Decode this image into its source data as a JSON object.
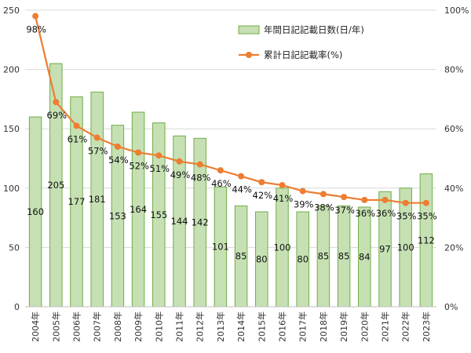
{
  "chart_data": {
    "type": "bar",
    "categories": [
      "2004年",
      "2005年",
      "2006年",
      "2007年",
      "2008年",
      "2009年",
      "2010年",
      "2011年",
      "2012年",
      "2013年",
      "2014年",
      "2015年",
      "2016年",
      "2017年",
      "2018年",
      "2019年",
      "2020年",
      "2021年",
      "2022年",
      "2023年"
    ],
    "series": [
      {
        "name": "年間日記記載日数(日/年)",
        "type": "bar",
        "axis": "left",
        "color": "#c6e0b4",
        "values": [
          160,
          205,
          177,
          181,
          153,
          164,
          155,
          144,
          142,
          101,
          85,
          80,
          100,
          80,
          85,
          85,
          84,
          97,
          100,
          112
        ]
      },
      {
        "name": "累計日記記載率(%)",
        "type": "line",
        "axis": "right",
        "color": "#ed7d31",
        "values": [
          98,
          69,
          61,
          57,
          54,
          52,
          51,
          49,
          48,
          46,
          44,
          42,
          41,
          39,
          38,
          37,
          36,
          36,
          35,
          35
        ],
        "labels": [
          "98%",
          "69%",
          "61%",
          "57%",
          "54%",
          "52%",
          "51%",
          "49%",
          "48%",
          "46%",
          "44%",
          "42%",
          "41%",
          "39%",
          "38%",
          "37%",
          "36%",
          "36%",
          "35%",
          "35%"
        ]
      }
    ],
    "ylim": [
      0,
      250
    ],
    "y_ticks": [
      "0",
      "50",
      "100",
      "150",
      "200",
      "250"
    ],
    "y2lim": [
      0,
      100
    ],
    "y2_ticks": [
      "0%",
      "20%",
      "40%",
      "60%",
      "80%",
      "100%"
    ],
    "grid": true,
    "legend": "top-right",
    "title": "",
    "xlabel": "",
    "ylabel": ""
  }
}
